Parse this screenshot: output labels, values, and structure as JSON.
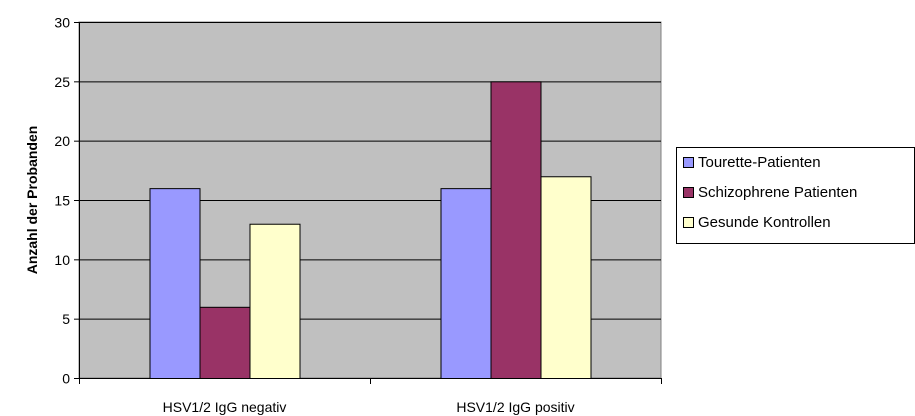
{
  "chart_data": {
    "type": "bar",
    "categories": [
      "HSV1/2 IgG negativ",
      "HSV1/2 IgG positiv"
    ],
    "series": [
      {
        "name": "Tourette-Patienten",
        "values": [
          16,
          16
        ],
        "color": "#9999ff"
      },
      {
        "name": "Schizophrene Patienten",
        "values": [
          6,
          25
        ],
        "color": "#993366"
      },
      {
        "name": "Gesunde Kontrollen",
        "values": [
          13,
          17
        ],
        "color": "#ffffcc"
      }
    ],
    "title": "",
    "xlabel": "",
    "ylabel": "Anzahl der Probanden",
    "ylim": [
      0,
      30
    ],
    "yticks": [
      "0",
      "5",
      "10",
      "15",
      "20",
      "25",
      "30"
    ],
    "grid": true,
    "plot_background": "#c0c0c0",
    "legend_position": "right"
  }
}
